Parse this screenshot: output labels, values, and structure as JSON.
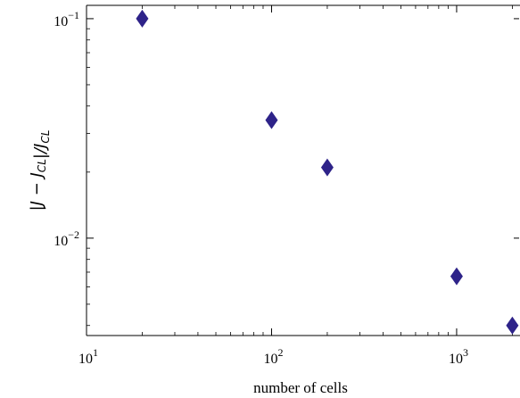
{
  "chart_data": {
    "type": "scatter",
    "xlabel": "number of cells",
    "ylabel": "|J − J_CL|/J_CL",
    "x_scale": "log",
    "y_scale": "log",
    "xlim": [
      10,
      2200
    ],
    "ylim": [
      0.0036,
      0.115
    ],
    "x_ticks": [
      {
        "value": 10,
        "base": "10",
        "exp": "1"
      },
      {
        "value": 100,
        "base": "10",
        "exp": "2"
      },
      {
        "value": 1000,
        "base": "10",
        "exp": "3"
      }
    ],
    "y_ticks": [
      {
        "value": 0.1,
        "base": "10",
        "exp": "−1"
      },
      {
        "value": 0.01,
        "base": "10",
        "exp": "−2"
      }
    ],
    "grid": false,
    "marker": "diamond",
    "marker_color": "#2e2389",
    "series": [
      {
        "x": [
          20,
          100,
          200,
          1000,
          2000
        ],
        "y": [
          0.1,
          0.0345,
          0.021,
          0.0067,
          0.004
        ]
      }
    ]
  }
}
